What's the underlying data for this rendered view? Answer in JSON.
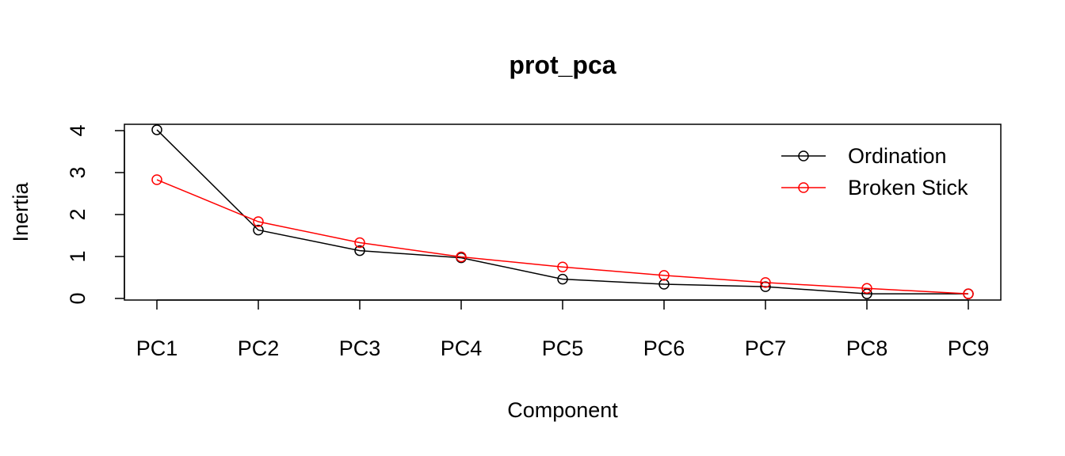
{
  "chart_data": {
    "type": "line",
    "title": "prot_pca",
    "xlabel": "Component",
    "ylabel": "Inertia",
    "categories": [
      "PC1",
      "PC2",
      "PC3",
      "PC4",
      "PC5",
      "PC6",
      "PC7",
      "PC8",
      "PC9"
    ],
    "ylim": [
      0,
      4
    ],
    "yticks": [
      "0",
      "1",
      "2",
      "3",
      "4"
    ],
    "series": [
      {
        "name": "Ordination",
        "color": "#000000",
        "values": [
          4.02,
          1.63,
          1.14,
          0.97,
          0.46,
          0.34,
          0.28,
          0.11,
          0.11
        ]
      },
      {
        "name": "Broken Stick",
        "color": "#ff0000",
        "values": [
          2.83,
          1.83,
          1.33,
          0.99,
          0.75,
          0.55,
          0.38,
          0.24,
          0.11
        ]
      }
    ],
    "legend_position": "top-right",
    "grid": false
  }
}
